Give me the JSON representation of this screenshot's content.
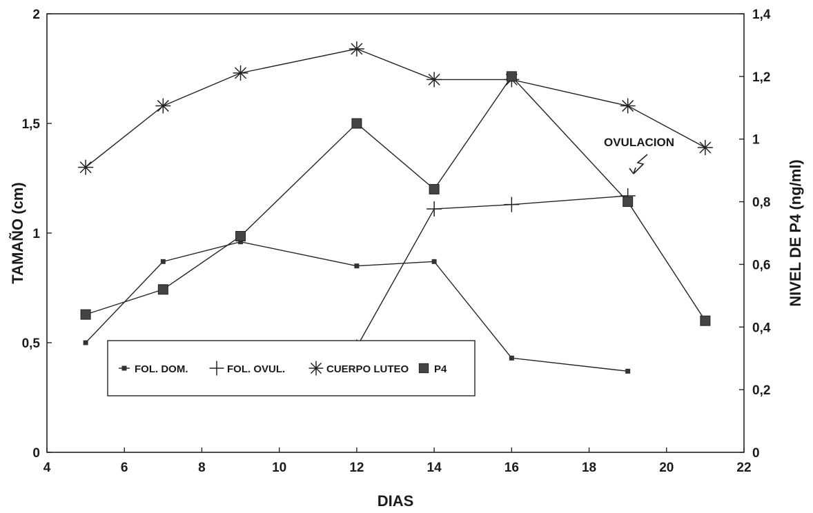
{
  "chart_data": {
    "type": "line",
    "xlabel": "DIAS",
    "ylabel": "TAMAÑO (cm)",
    "y2label": "NIVEL DE P4 (ng/ml)",
    "xlim": [
      4,
      22
    ],
    "ylim": [
      0,
      2
    ],
    "y2lim": [
      0,
      1.4
    ],
    "x_ticks": [
      "4",
      "6",
      "8",
      "10",
      "12",
      "14",
      "16",
      "18",
      "20",
      "22"
    ],
    "y_ticks": [
      "0",
      "0,5",
      "1",
      "1,5",
      "2"
    ],
    "y2_ticks": [
      "0",
      "0,2",
      "0,4",
      "0,6",
      "0,8",
      "1",
      "1,2",
      "1,4"
    ],
    "grid": false,
    "legend_position": "bottom-left",
    "series": [
      {
        "name": "FOL. DOM.",
        "axis": "left",
        "marker": "small-square",
        "x": [
          5,
          7,
          9,
          12,
          14,
          16,
          19
        ],
        "y": [
          0.5,
          0.87,
          0.96,
          0.85,
          0.87,
          0.43,
          0.37
        ]
      },
      {
        "name": "FOL. OVUL.",
        "axis": "left",
        "marker": "plus",
        "x": [
          12,
          14,
          16,
          19
        ],
        "y": [
          0.48,
          1.11,
          1.13,
          1.17
        ]
      },
      {
        "name": "CUERPO LUTEO",
        "axis": "left",
        "marker": "asterisk",
        "x": [
          5,
          7,
          9,
          12,
          14,
          16,
          19,
          21
        ],
        "y": [
          1.3,
          1.58,
          1.73,
          1.84,
          1.7,
          1.7,
          1.58,
          1.39
        ]
      },
      {
        "name": "P4",
        "axis": "right",
        "marker": "filled-square",
        "x": [
          5,
          7,
          9,
          12,
          14,
          16,
          19,
          21
        ],
        "y": [
          0.44,
          0.52,
          0.69,
          1.05,
          0.84,
          1.2,
          0.8,
          0.42
        ]
      }
    ],
    "annotations": [
      {
        "text": "OVULACION",
        "x": 19
      }
    ]
  }
}
